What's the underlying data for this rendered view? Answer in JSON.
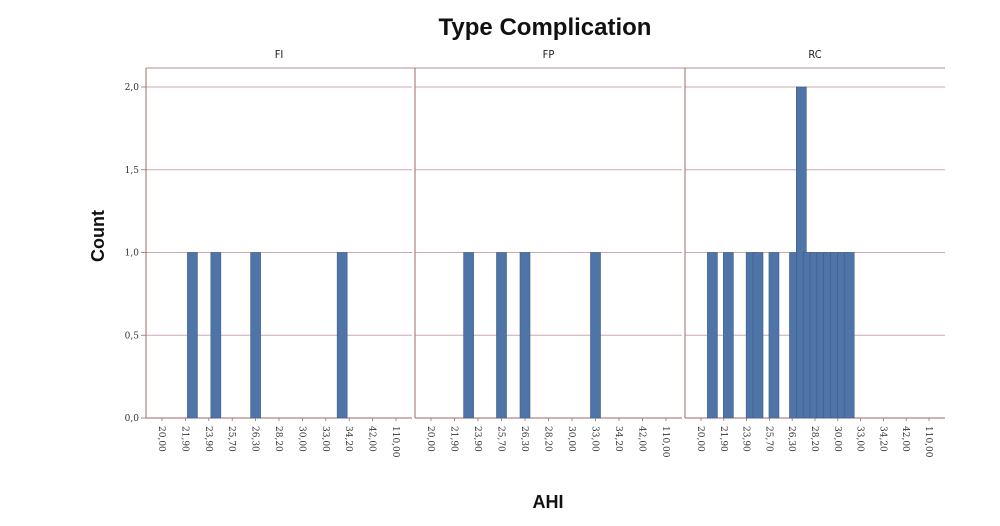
{
  "chart_data": {
    "type": "bar",
    "title": "Type Complication",
    "xlabel": "AHI",
    "ylabel": "Count",
    "ylim": [
      0,
      2.0
    ],
    "yticks": [
      "0,0",
      "0,5",
      "1,0",
      "1,5",
      "2,0"
    ],
    "ytick_values": [
      0,
      0.5,
      1.0,
      1.5,
      2.0
    ],
    "xticks": [
      "20,00",
      "21,90",
      "23,90",
      "25,70",
      "26,30",
      "28,20",
      "30,00",
      "33,00",
      "34,20",
      "42,00",
      "110,00"
    ],
    "bar_color": "#4f74a8",
    "grid": true,
    "facets": [
      {
        "name": "FI",
        "bars": [
          {
            "x": 1.3,
            "count": 1
          },
          {
            "x": 2.3,
            "count": 1
          },
          {
            "x": 4.0,
            "count": 1
          },
          {
            "x": 7.7,
            "count": 1
          }
        ]
      },
      {
        "name": "FP",
        "bars": [
          {
            "x": 1.6,
            "count": 1
          },
          {
            "x": 3.0,
            "count": 1
          },
          {
            "x": 4.0,
            "count": 1
          },
          {
            "x": 7.0,
            "count": 1
          }
        ]
      },
      {
        "name": "RC",
        "bars": [
          {
            "x": 0.5,
            "count": 1
          },
          {
            "x": 1.2,
            "count": 1
          },
          {
            "x": 2.2,
            "count": 1
          },
          {
            "x": 2.5,
            "count": 1
          },
          {
            "x": 3.2,
            "count": 1
          },
          {
            "x": 4.1,
            "count": 1
          },
          {
            "x": 4.4,
            "count": 2
          },
          {
            "x": 4.7,
            "count": 1
          },
          {
            "x": 5.0,
            "count": 1
          },
          {
            "x": 5.3,
            "count": 1
          },
          {
            "x": 5.6,
            "count": 1
          },
          {
            "x": 5.9,
            "count": 1
          },
          {
            "x": 6.2,
            "count": 1
          },
          {
            "x": 6.5,
            "count": 1
          }
        ]
      }
    ]
  }
}
